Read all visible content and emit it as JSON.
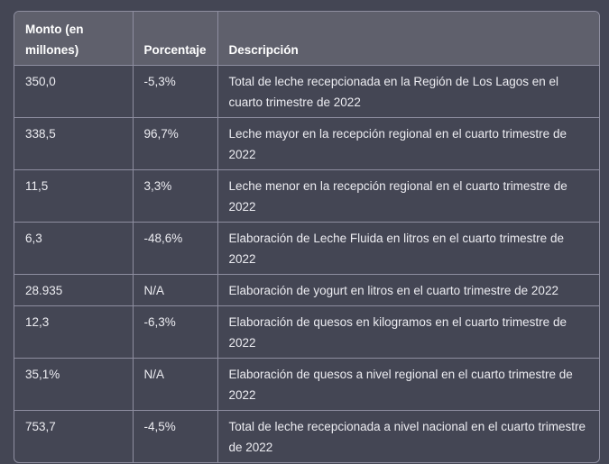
{
  "table": {
    "headers": [
      "Monto (en millones)",
      "Porcentaje",
      "Descripción"
    ],
    "rows": [
      [
        "350,0",
        "-5,3%",
        "Total de leche recepcionada en la Región de Los Lagos en el cuarto trimestre de 2022"
      ],
      [
        "338,5",
        "96,7%",
        "Leche mayor en la recepción regional en el cuarto trimestre de 2022"
      ],
      [
        "11,5",
        "3,3%",
        "Leche menor en la recepción regional en el cuarto trimestre de 2022"
      ],
      [
        "6,3",
        "-48,6%",
        "Elaboración de Leche Fluida en litros en el cuarto trimestre de 2022"
      ],
      [
        "28.935",
        "N/A",
        "Elaboración de yogurt en litros en el cuarto trimestre de 2022"
      ],
      [
        "12,3",
        "-6,3%",
        "Elaboración de quesos en kilogramos en el cuarto trimestre de 2022"
      ],
      [
        "35,1%",
        "N/A",
        "Elaboración de quesos a nivel regional en el cuarto trimestre de 2022"
      ],
      [
        "753,7",
        "-4,5%",
        "Total de leche recepcionada a nivel nacional en el cuarto trimestre de 2022"
      ]
    ]
  },
  "colors": {
    "background": "#444654",
    "header_background": "#5f606c",
    "border": "#8e8ea0",
    "text": "#ececf1"
  }
}
